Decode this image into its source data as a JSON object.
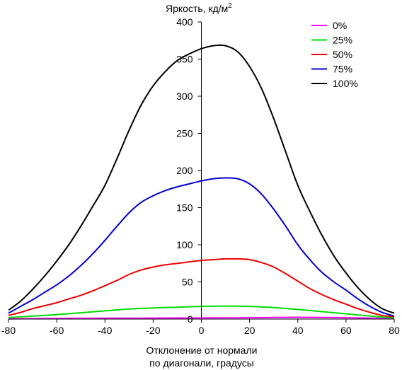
{
  "chart_data": {
    "type": "line",
    "title": "",
    "ylabel": "Яркость, кд/м",
    "ylabel_sup": "2",
    "xlabel_line1": "Отклонение от нормали",
    "xlabel_line2": "по диагонали, градусы",
    "xlim": [
      -80,
      80
    ],
    "ylim": [
      0,
      400
    ],
    "x_ticks": [
      "-80",
      "-60",
      "-40",
      "-20",
      "0",
      "20",
      "40",
      "60",
      "80"
    ],
    "y_ticks": [
      "0",
      "50",
      "100",
      "150",
      "200",
      "250",
      "300",
      "350",
      "400"
    ],
    "grid": false,
    "legend_position": "top-right",
    "series": [
      {
        "name": "0%",
        "color": "#ff00ff",
        "x": [
          -80,
          -70,
          -60,
          -50,
          -40,
          -30,
          -20,
          -10,
          0,
          10,
          20,
          30,
          40,
          50,
          60,
          70,
          80
        ],
        "y": [
          0.3,
          0.6,
          0.8,
          1,
          1.1,
          1.2,
          1.3,
          1.4,
          1.5,
          1.6,
          1.8,
          2.1,
          2.4,
          2.2,
          1.8,
          1.2,
          0.5
        ]
      },
      {
        "name": "25%",
        "color": "#00dd00",
        "x": [
          -80,
          -70,
          -60,
          -50,
          -40,
          -30,
          -20,
          -10,
          0,
          10,
          20,
          30,
          40,
          50,
          60,
          70,
          80
        ],
        "y": [
          2,
          4,
          6,
          8.5,
          11,
          13.5,
          15,
          16,
          17,
          17.5,
          17,
          15.5,
          13,
          10,
          7,
          4,
          1.5
        ]
      },
      {
        "name": "50%",
        "color": "#ee0000",
        "x": [
          -80,
          -75,
          -70,
          -65,
          -60,
          -55,
          -50,
          -45,
          -40,
          -35,
          -30,
          -25,
          -20,
          -15,
          -10,
          -5,
          0,
          5,
          10,
          15,
          20,
          25,
          30,
          35,
          40,
          45,
          50,
          55,
          60,
          65,
          70,
          75,
          80
        ],
        "y": [
          5,
          9,
          14,
          18,
          22,
          27,
          32,
          38,
          45,
          52,
          60,
          66,
          70,
          73,
          75,
          77,
          79,
          80,
          81,
          81,
          80,
          76,
          70,
          61,
          51,
          41,
          33,
          26,
          20,
          14,
          9,
          5,
          3
        ]
      },
      {
        "name": "75%",
        "color": "#0000cc",
        "x": [
          -80,
          -75,
          -70,
          -65,
          -60,
          -55,
          -50,
          -45,
          -40,
          -35,
          -30,
          -25,
          -20,
          -15,
          -10,
          -5,
          0,
          5,
          10,
          15,
          20,
          25,
          30,
          35,
          40,
          45,
          50,
          55,
          60,
          65,
          70,
          75,
          80
        ],
        "y": [
          8,
          17,
          26,
          36,
          46,
          58,
          72,
          88,
          106,
          125,
          143,
          157,
          166,
          173,
          178,
          182,
          186,
          189,
          190,
          189,
          182,
          168,
          148,
          125,
          100,
          80,
          63,
          50,
          39,
          27,
          17,
          9,
          4
        ]
      },
      {
        "name": "100%",
        "color": "#000000",
        "x": [
          -80,
          -75,
          -70,
          -65,
          -60,
          -55,
          -50,
          -45,
          -40,
          -35,
          -30,
          -25,
          -20,
          -15,
          -10,
          -5,
          0,
          5,
          10,
          15,
          20,
          25,
          30,
          35,
          40,
          45,
          50,
          55,
          60,
          65,
          70,
          75,
          80
        ],
        "y": [
          12,
          24,
          40,
          58,
          78,
          100,
          125,
          152,
          180,
          216,
          254,
          288,
          314,
          333,
          348,
          357,
          364,
          368,
          368,
          360,
          340,
          310,
          270,
          225,
          180,
          145,
          113,
          85,
          62,
          42,
          26,
          14,
          8
        ]
      }
    ]
  }
}
